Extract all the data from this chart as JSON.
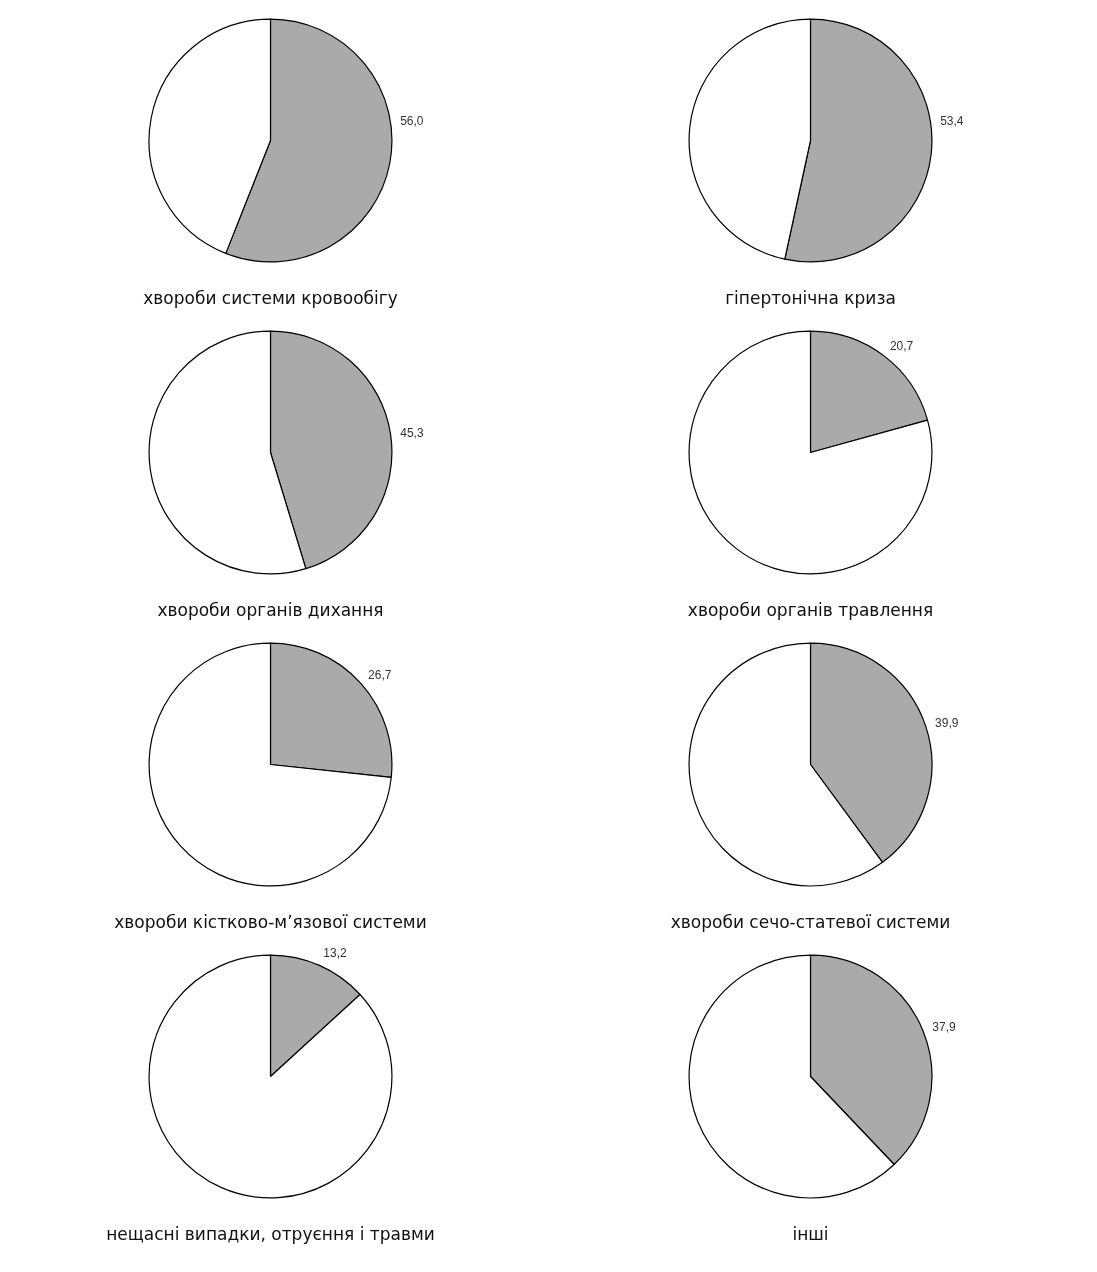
{
  "chart_data": [
    {
      "type": "pie",
      "title": "хвороби системи кровообігу",
      "categories": [
        null,
        null
      ],
      "values": [
        56.0,
        44.0
      ],
      "colors": [
        "#aaaaaa",
        "#ffffff"
      ],
      "value_labels": [
        "56,0",
        null
      ]
    },
    {
      "type": "pie",
      "title": "гіпертонічна криза",
      "categories": [
        null,
        null
      ],
      "values": [
        53.4,
        46.6
      ],
      "colors": [
        "#aaaaaa",
        "#ffffff"
      ],
      "value_labels": [
        "53,4",
        null
      ]
    },
    {
      "type": "pie",
      "title": "хвороби органів дихання",
      "categories": [
        null,
        null
      ],
      "values": [
        45.3,
        54.7
      ],
      "colors": [
        "#aaaaaa",
        "#ffffff"
      ],
      "value_labels": [
        "45,3",
        null
      ]
    },
    {
      "type": "pie",
      "title": "хвороби органів травлення",
      "categories": [
        null,
        null
      ],
      "values": [
        20.7,
        79.3
      ],
      "colors": [
        "#aaaaaa",
        "#ffffff"
      ],
      "value_labels": [
        "20,7",
        null
      ]
    },
    {
      "type": "pie",
      "title": "хвороби кістково-м’язової системи",
      "categories": [
        null,
        null
      ],
      "values": [
        26.7,
        73.3
      ],
      "colors": [
        "#aaaaaa",
        "#ffffff"
      ],
      "value_labels": [
        "26,7",
        null
      ]
    },
    {
      "type": "pie",
      "title": "хвороби сечо-статевої системи",
      "categories": [
        null,
        null
      ],
      "values": [
        39.9,
        60.1
      ],
      "colors": [
        "#aaaaaa",
        "#ffffff"
      ],
      "value_labels": [
        "39,9",
        null
      ]
    },
    {
      "type": "pie",
      "title": "нещасні випадки, отруєння і травми",
      "categories": [
        null,
        null
      ],
      "values": [
        13.2,
        86.8
      ],
      "colors": [
        "#aaaaaa",
        "#ffffff"
      ],
      "value_labels": [
        "13,2",
        null
      ]
    },
    {
      "type": "pie",
      "title": "інші",
      "categories": [
        null,
        null
      ],
      "values": [
        37.9,
        62.1
      ],
      "colors": [
        "#aaaaaa",
        "#ffffff"
      ],
      "value_labels": [
        "37,9",
        null
      ]
    }
  ]
}
